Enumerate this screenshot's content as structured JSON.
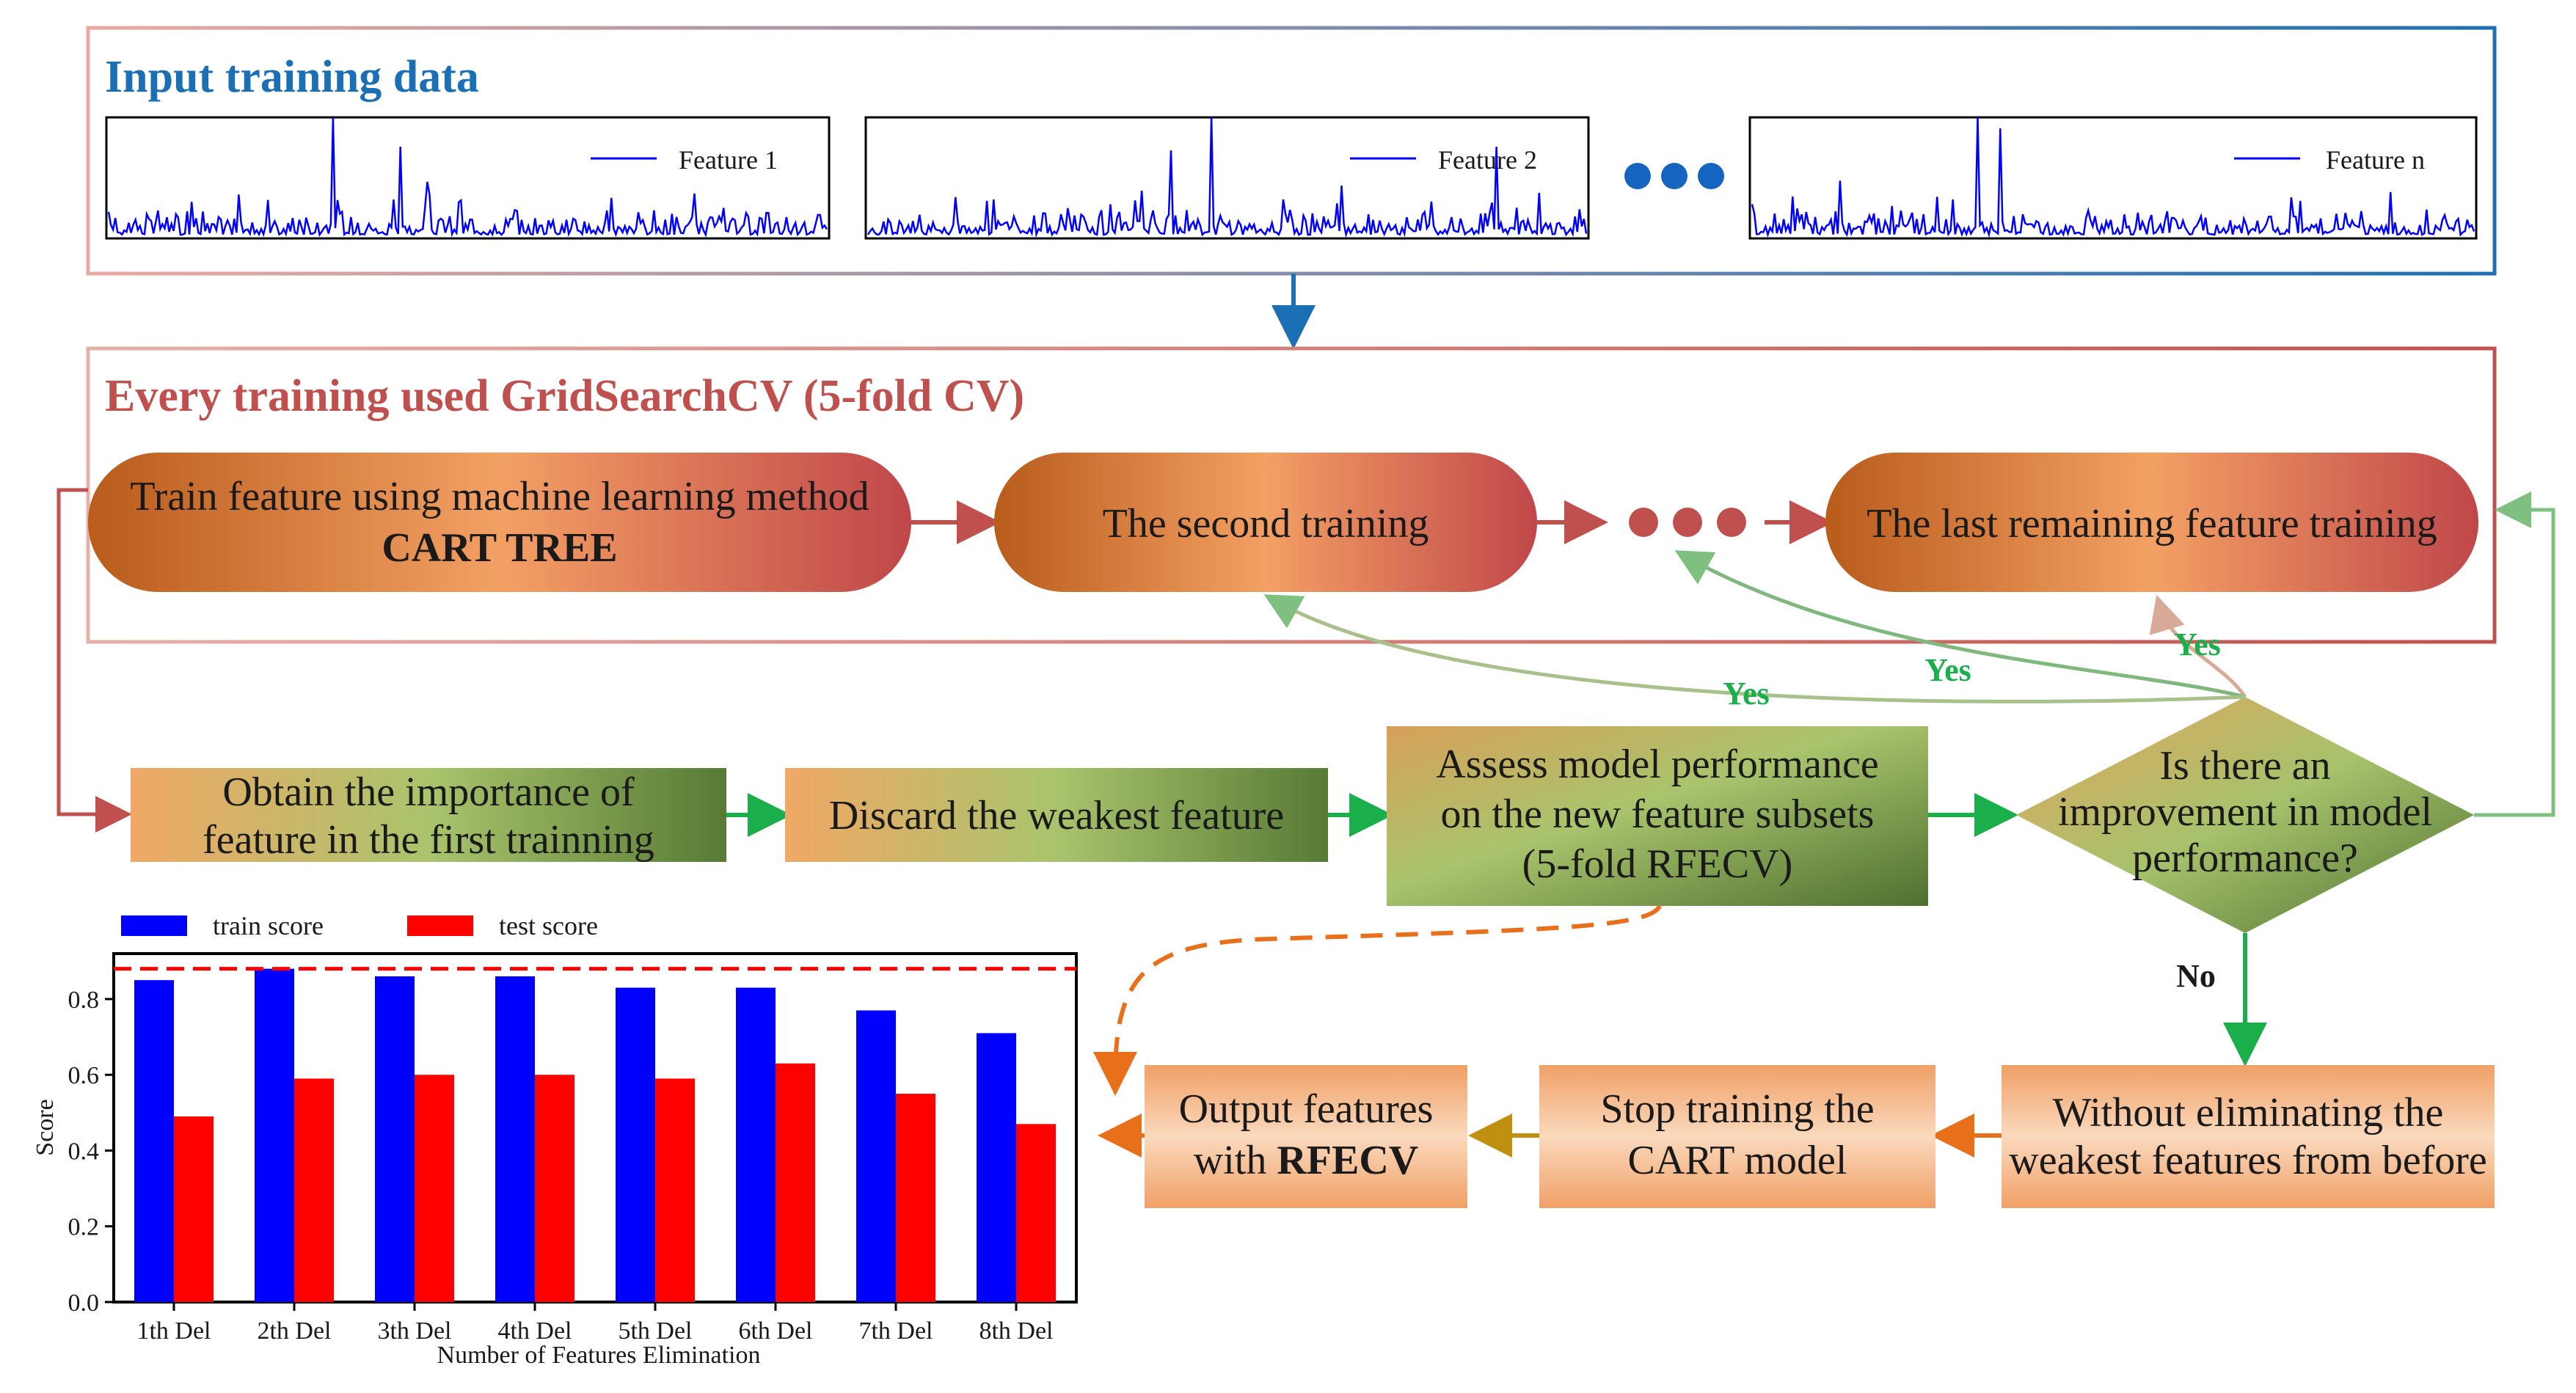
{
  "input_section": {
    "title": "Input training data",
    "features": [
      {
        "label": "Feature 1"
      },
      {
        "label": "Feature 2"
      },
      {
        "label": "Feature n"
      }
    ]
  },
  "training_section": {
    "title": "Every training used GridSearchCV (5-fold CV)",
    "first_training": {
      "line1": "Train feature using machine learning method",
      "line2": "CART TREE"
    },
    "second_training": "The second training",
    "last_training": "The last remaining feature training"
  },
  "process": {
    "importance": {
      "line1": "Obtain the importance of",
      "line2": "feature in the first trainning"
    },
    "discard": "Discard the weakest feature",
    "assess": {
      "line1": "Assess model performance",
      "line2": "on the new feature subsets",
      "line3": "(5-fold RFECV)"
    },
    "decision": {
      "line1": "Is there an",
      "line2": "improvement in model",
      "line3": "performance?"
    },
    "yes_label": "Yes",
    "no_label": "No",
    "without": {
      "line1": "Without eliminating the",
      "line2": "weakest features from before"
    },
    "stop": {
      "line1": "Stop training the",
      "line2": "CART model"
    },
    "output": {
      "line1": "Output features",
      "line2_prefix": "with ",
      "line2_bold": "RFECV"
    }
  },
  "colors": {
    "blue": "#1a6fb5",
    "red": "#c0504d",
    "green": "#1aaf4b",
    "orange": "#e8701a",
    "train": "#0000ff",
    "test": "#ff0000"
  },
  "chart_data": {
    "type": "bar",
    "categories": [
      "1th Del",
      "2th Del",
      "3th Del",
      "4th Del",
      "5th Del",
      "6th Del",
      "7th Del",
      "8th Del"
    ],
    "series": [
      {
        "name": "train score",
        "values": [
          0.85,
          0.88,
          0.86,
          0.86,
          0.83,
          0.83,
          0.77,
          0.71
        ]
      },
      {
        "name": "test score",
        "values": [
          0.49,
          0.59,
          0.6,
          0.6,
          0.59,
          0.63,
          0.55,
          0.47
        ]
      }
    ],
    "reference_line": 0.88,
    "ylim": [
      0,
      0.92
    ],
    "yticks": [
      0.0,
      0.2,
      0.4,
      0.6,
      0.8
    ],
    "ytick_labels": [
      "0.0",
      "0.2",
      "0.4",
      "0.6",
      "0.8"
    ],
    "xlabel": "Number of Features Elimination",
    "ylabel": "Score",
    "legend": [
      "train score",
      "test score"
    ]
  }
}
